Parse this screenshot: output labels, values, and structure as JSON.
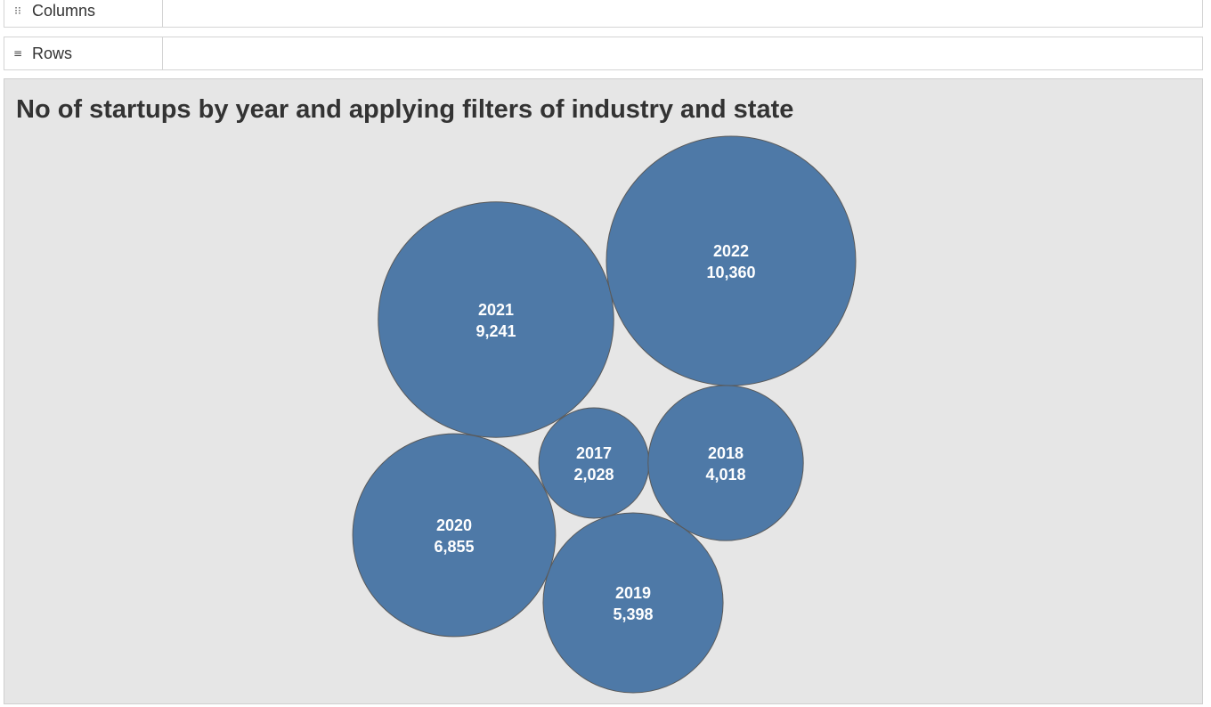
{
  "shelves": {
    "columns_label": "Columns",
    "rows_label": "Rows",
    "columns_icon": "columns-shelf-icon",
    "rows_icon": "rows-shelf-icon"
  },
  "chart_data": {
    "type": "bubble",
    "title": "No of startups by year and applying filters of industry and state",
    "color": "#4e79a7",
    "background": "#e6e6e6",
    "points": [
      {
        "year": "2017",
        "count": 2028,
        "label": "2,028"
      },
      {
        "year": "2018",
        "count": 4018,
        "label": "4,018"
      },
      {
        "year": "2019",
        "count": 5398,
        "label": "5,398"
      },
      {
        "year": "2020",
        "count": 6855,
        "label": "6,855"
      },
      {
        "year": "2021",
        "count": 9241,
        "label": "9,241"
      },
      {
        "year": "2022",
        "count": 10360,
        "label": "10,360"
      }
    ]
  }
}
